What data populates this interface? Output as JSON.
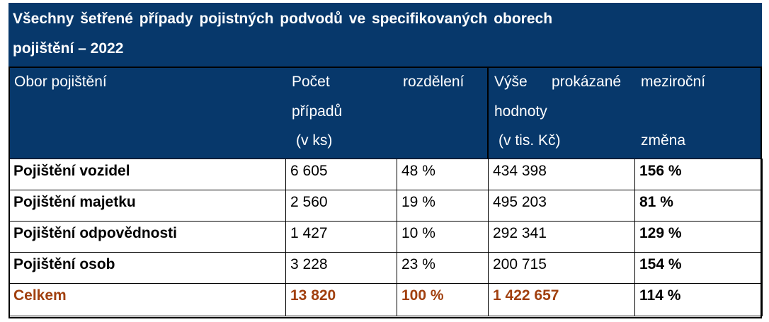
{
  "title": {
    "line1": "Všechny šetřené případy pojistných podvodů ve specifikovaných oborech",
    "line2": "pojištění – 2022"
  },
  "header": {
    "col1": "Obor pojištění",
    "col2_line1": "Počet",
    "col2_line2": "případů",
    "col2_line3": "(v ks)",
    "col3": "rozdělení",
    "col4_line1_a": "Výše",
    "col4_line1_b": "prokázané",
    "col4_line2": "hodnoty",
    "col4_line3": "(v tis. Kč)",
    "col5_line1": "meziroční",
    "col5_line3": "změna"
  },
  "rows": [
    {
      "obor": "Pojištění vozidel",
      "pocet": "6 605",
      "rozdeleni": "48 %",
      "vyse": "434 398",
      "zmena": "156 %"
    },
    {
      "obor": "Pojištění majetku",
      "pocet": "2 560",
      "rozdeleni": "19 %",
      "vyse": "495 203",
      "zmena": "81 %"
    },
    {
      "obor": "Pojištění odpovědnosti",
      "pocet": "1 427",
      "rozdeleni": "10 %",
      "vyse": "292 341",
      "zmena": "129 %"
    },
    {
      "obor": "Pojištění osob",
      "pocet": "3 228",
      "rozdeleni": "23 %",
      "vyse": "200 715",
      "zmena": "154 %"
    }
  ],
  "total": {
    "obor": "Celkem",
    "pocet": "13 820",
    "rozdeleni": "100 %",
    "vyse": "1 422 657",
    "zmena": "114 %"
  },
  "colors": {
    "header_bg": "#07386b",
    "total_text": "#a1400f"
  }
}
